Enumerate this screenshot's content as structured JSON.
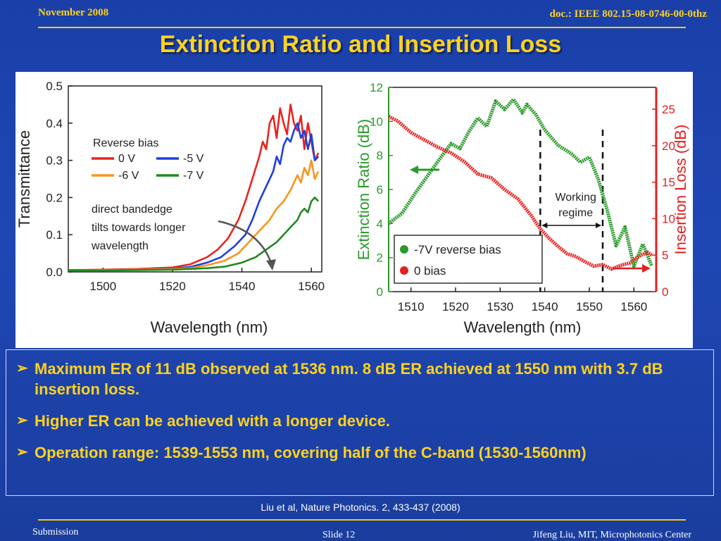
{
  "header": {
    "date": "November 2008",
    "doc_id": "doc.: IEEE 802.15-08-0746-00-0thz"
  },
  "title": "Extinction Ratio and Insertion Loss",
  "bullets": [
    "Maximum ER of 11 dB observed at 1536 nm. 8 dB ER achieved at 1550 nm with 3.7 dB insertion loss.",
    "Higher ER can be achieved with a longer device.",
    "Operation range: 1539-1553 nm, covering half of the C-band (1530-1560nm)"
  ],
  "citation": "Liu et al, Nature Photonics. 2, 433-437  (2008)",
  "footer": {
    "left": "Submission",
    "center": "Slide 12",
    "right": "Jifeng Liu, MIT, Microphotonics Center"
  },
  "colors": {
    "accent": "#ffd21f",
    "background": "#1f47b4"
  },
  "chart_data": [
    {
      "type": "line",
      "xlabel": "Wavelength (nm)",
      "ylabel": "Transmittance",
      "xlim": [
        1490,
        1563
      ],
      "ylim": [
        0,
        0.5
      ],
      "x_ticks": [
        "1500",
        "1520",
        "1540",
        "1560"
      ],
      "x_tick_values": [
        1500,
        1520,
        1540,
        1560
      ],
      "y_ticks": [
        "0.0",
        "0.1",
        "0.2",
        "0.3",
        "0.4",
        "0.5"
      ],
      "y_tick_values": [
        0,
        0.1,
        0.2,
        0.3,
        0.4,
        0.5
      ],
      "legend_title": "Reverse bias",
      "annotation": [
        "direct bandedge",
        "tilts towards longer",
        "wavelength"
      ],
      "series": [
        {
          "name": "0 V",
          "color": "#e8241f",
          "x": [
            1490,
            1500,
            1510,
            1520,
            1525,
            1530,
            1533,
            1536,
            1539,
            1541,
            1543,
            1545,
            1546,
            1547,
            1548,
            1549,
            1550,
            1551,
            1552,
            1553,
            1554,
            1555,
            1556,
            1557,
            1558,
            1559,
            1560,
            1561,
            1562
          ],
          "y": [
            0.005,
            0.006,
            0.008,
            0.012,
            0.02,
            0.04,
            0.06,
            0.09,
            0.14,
            0.19,
            0.25,
            0.31,
            0.35,
            0.33,
            0.4,
            0.42,
            0.36,
            0.44,
            0.4,
            0.37,
            0.45,
            0.4,
            0.38,
            0.42,
            0.33,
            0.4,
            0.35,
            0.3,
            0.32
          ]
        },
        {
          "name": "-5 V",
          "color": "#1f3fe0",
          "x": [
            1490,
            1500,
            1510,
            1520,
            1525,
            1530,
            1534,
            1538,
            1541,
            1543,
            1545,
            1547,
            1549,
            1550,
            1551,
            1552,
            1553,
            1554,
            1555,
            1556,
            1557,
            1558,
            1559,
            1560,
            1561,
            1562
          ],
          "y": [
            0.004,
            0.005,
            0.006,
            0.009,
            0.013,
            0.025,
            0.04,
            0.07,
            0.1,
            0.14,
            0.19,
            0.23,
            0.27,
            0.31,
            0.29,
            0.34,
            0.36,
            0.35,
            0.38,
            0.4,
            0.36,
            0.38,
            0.33,
            0.37,
            0.3,
            0.31
          ]
        },
        {
          "name": "-6 V",
          "color": "#f7961e",
          "x": [
            1490,
            1500,
            1510,
            1520,
            1525,
            1530,
            1535,
            1539,
            1542,
            1545,
            1548,
            1550,
            1552,
            1554,
            1556,
            1557,
            1558,
            1559,
            1560,
            1561,
            1562
          ],
          "y": [
            0.004,
            0.005,
            0.006,
            0.008,
            0.01,
            0.018,
            0.03,
            0.05,
            0.08,
            0.11,
            0.14,
            0.17,
            0.19,
            0.22,
            0.26,
            0.24,
            0.28,
            0.26,
            0.3,
            0.25,
            0.27
          ]
        },
        {
          "name": "-7 V",
          "color": "#1f8a1f",
          "x": [
            1490,
            1500,
            1510,
            1520,
            1525,
            1530,
            1535,
            1540,
            1544,
            1547,
            1550,
            1552,
            1554,
            1556,
            1557,
            1558,
            1559,
            1560,
            1561,
            1562
          ],
          "y": [
            0.004,
            0.004,
            0.005,
            0.006,
            0.008,
            0.01,
            0.014,
            0.025,
            0.04,
            0.06,
            0.08,
            0.1,
            0.12,
            0.14,
            0.16,
            0.17,
            0.16,
            0.19,
            0.2,
            0.19
          ]
        }
      ]
    },
    {
      "type": "line",
      "xlabel": "Wavelength (nm)",
      "ylabel_left": "Extinction Ratio  (dB)",
      "ylabel_right": "Insertion Loss (dB)",
      "xlim": [
        1505,
        1565
      ],
      "ylim_left": [
        0,
        12
      ],
      "ylim_right": [
        0,
        28
      ],
      "x_ticks": [
        "1510",
        "1520",
        "1530",
        "1540",
        "1550",
        "1560"
      ],
      "x_tick_values": [
        1510,
        1520,
        1530,
        1540,
        1550,
        1560
      ],
      "y_left_ticks": [
        "0",
        "2",
        "4",
        "6",
        "8",
        "10",
        "12"
      ],
      "y_left_tick_values": [
        0,
        2,
        4,
        6,
        8,
        10,
        12
      ],
      "y_right_ticks": [
        "0",
        "5",
        "10",
        "15",
        "20",
        "25"
      ],
      "y_right_tick_values": [
        0,
        5,
        10,
        15,
        20,
        25
      ],
      "working_regime": [
        1539,
        1553
      ],
      "working_regime_label": [
        "Working",
        "regime"
      ],
      "series": [
        {
          "name": "-7V reverse bias",
          "axis": "left",
          "color": "#2a9a2a",
          "x": [
            1505,
            1508,
            1511,
            1514,
            1517,
            1519,
            1521,
            1523,
            1525,
            1527,
            1529,
            1531,
            1533,
            1535,
            1536,
            1538,
            1540,
            1543,
            1546,
            1548,
            1550,
            1552,
            1554,
            1556,
            1558,
            1560,
            1562,
            1564
          ],
          "y": [
            4.0,
            4.6,
            5.8,
            6.9,
            8.0,
            8.7,
            8.4,
            9.4,
            10.2,
            9.7,
            11.2,
            10.7,
            11.3,
            10.5,
            11.0,
            10.4,
            9.5,
            8.6,
            8.1,
            7.6,
            7.9,
            6.6,
            4.8,
            2.7,
            3.8,
            1.5,
            2.8,
            1.5
          ]
        },
        {
          "name": "0 bias",
          "axis": "right",
          "color": "#e32020",
          "x": [
            1505,
            1507,
            1510,
            1513,
            1516,
            1519,
            1522,
            1525,
            1528,
            1531,
            1534,
            1537,
            1539,
            1541,
            1543,
            1545,
            1547,
            1549,
            1551,
            1553,
            1555,
            1557,
            1559,
            1561,
            1563,
            1564
          ],
          "y": [
            24.0,
            23.4,
            21.8,
            20.8,
            19.8,
            19.0,
            17.8,
            16.1,
            15.6,
            14.0,
            12.7,
            10.4,
            8.6,
            7.3,
            6.2,
            5.2,
            4.8,
            4.1,
            3.5,
            3.7,
            3.1,
            3.6,
            3.9,
            4.8,
            5.4,
            5.0
          ]
        }
      ]
    }
  ]
}
